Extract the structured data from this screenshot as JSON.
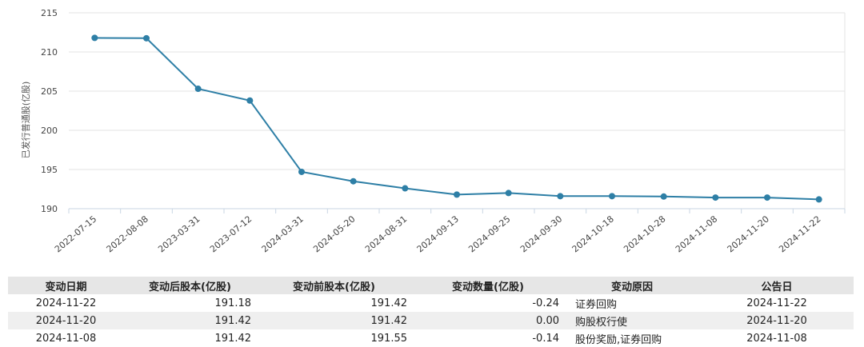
{
  "chart_data": {
    "type": "line",
    "ylabel": "已发行普通股(亿股)",
    "xlabel": "",
    "title": "",
    "categories": [
      "2022-07-15",
      "2022-08-08",
      "2023-03-31",
      "2023-07-12",
      "2024-03-31",
      "2024-05-20",
      "2024-08-31",
      "2024-09-13",
      "2024-09-25",
      "2024-09-30",
      "2024-10-18",
      "2024-10-28",
      "2024-11-08",
      "2024-11-20",
      "2024-11-22"
    ],
    "values": [
      211.8,
      211.75,
      205.3,
      203.8,
      194.7,
      193.5,
      192.6,
      191.8,
      192.0,
      191.6,
      191.6,
      191.55,
      191.42,
      191.42,
      191.18
    ],
    "ylim": [
      190,
      215
    ],
    "yticks": [
      190,
      195,
      200,
      205,
      210,
      215
    ],
    "grid": true,
    "colors": {
      "line": "#2e7fa6",
      "grid": "#e3e3e3",
      "axis": "#c9d6e3"
    }
  },
  "table": {
    "headers": [
      "变动日期",
      "变动后股本(亿股)",
      "变动前股本(亿股)",
      "变动数量(亿股)",
      "变动原因",
      "公告日"
    ],
    "rows": [
      [
        "2024-11-22",
        "191.18",
        "191.42",
        "-0.24",
        "证券回购",
        "2024-11-22"
      ],
      [
        "2024-11-20",
        "191.42",
        "191.42",
        "0.00",
        "购股权行使",
        "2024-11-20"
      ],
      [
        "2024-11-08",
        "191.42",
        "191.55",
        "-0.14",
        "股份奖励,证券回购",
        "2024-11-08"
      ]
    ]
  }
}
